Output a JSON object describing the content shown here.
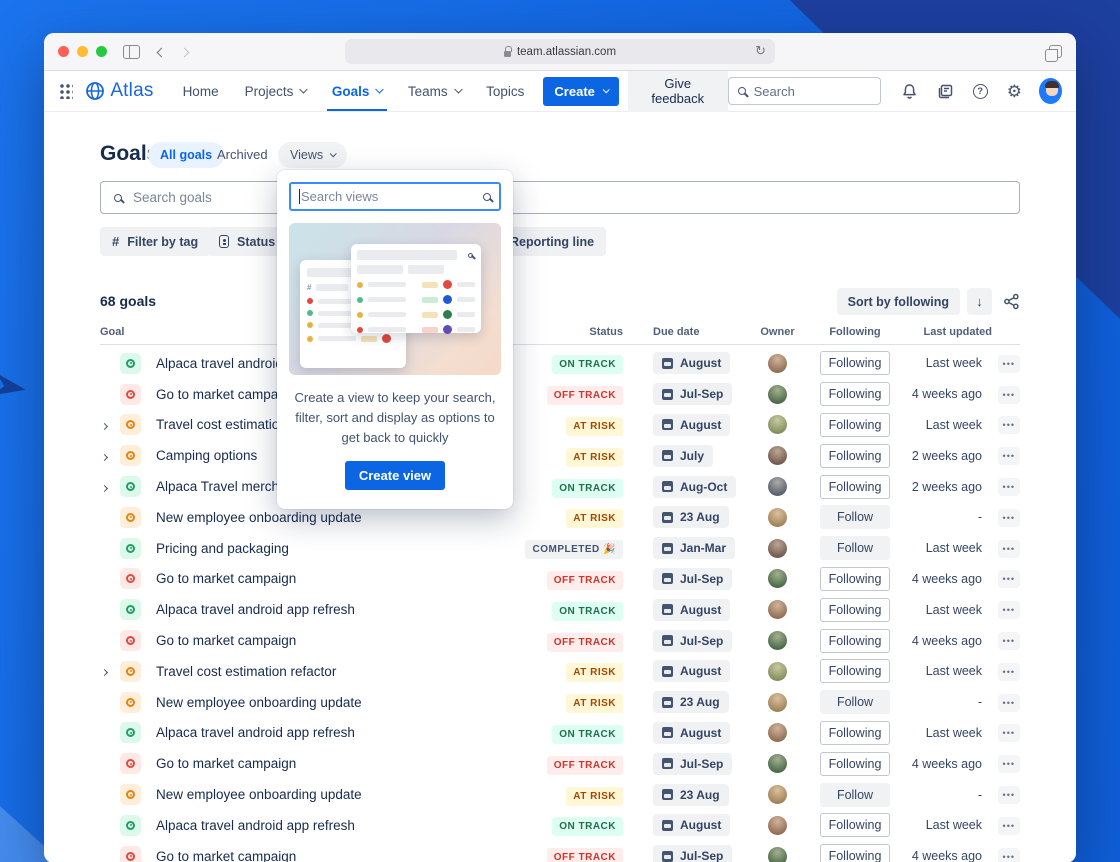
{
  "colors": {
    "brand_blue": "#0c66e4",
    "background_blue": "#1467e2",
    "background_navy": "#1d3f9e",
    "on_track": {
      "bg": "#dcfff1",
      "text": "#216e4e"
    },
    "off_track": {
      "bg": "#ffeceb",
      "text": "#c9372c"
    },
    "at_risk": {
      "bg": "#fff7d6",
      "text": "#a54800"
    },
    "completed": {
      "bg": "#f1f2f4",
      "text": "#44546f"
    }
  },
  "browser": {
    "url": "team.atlassian.com"
  },
  "nav": {
    "logo_label": "Atlas",
    "items": [
      {
        "label": "Home",
        "dropdown": false,
        "active": false
      },
      {
        "label": "Projects",
        "dropdown": true,
        "active": false
      },
      {
        "label": "Goals",
        "dropdown": true,
        "active": true
      },
      {
        "label": "Teams",
        "dropdown": true,
        "active": false
      },
      {
        "label": "Topics",
        "dropdown": false,
        "active": false
      }
    ],
    "create_label": "Create",
    "feedback_label": "Give feedback",
    "search_placeholder": "Search"
  },
  "page": {
    "title": "Goals",
    "tab_all": "All goals",
    "tab_archived": "Archived",
    "views_label": "Views",
    "search_placeholder": "Search goals",
    "filters": [
      "Filter by tag",
      "Status",
      "Reporting line"
    ],
    "count_label": "68 goals",
    "sort_label": "Sort by following",
    "sort_arrow": "↓"
  },
  "views_popup": {
    "search_placeholder": "Search views",
    "description": "Create a view to keep your search, filter, sort and display as options to get back to quickly",
    "button_label": "Create view"
  },
  "table": {
    "headers": [
      "Goal",
      "Status",
      "Due date",
      "Owner",
      "Following",
      "Last updated"
    ],
    "rows": [
      {
        "name": "Alpaca travel android app refresh",
        "expandable": false,
        "icon": "green",
        "status": "ON TRACK",
        "status_type": "on-track",
        "due": "August",
        "avatar": "#9c6f52",
        "follow_label": "Following",
        "follow_state": "following",
        "updated": "Last week"
      },
      {
        "name": "Go to market campaign",
        "expandable": false,
        "icon": "red",
        "status": "OFF TRACK",
        "status_type": "off-track",
        "due": "Jul-Sep",
        "avatar": "#35693d",
        "follow_label": "Following",
        "follow_state": "following",
        "updated": "4 weeks ago"
      },
      {
        "name": "Travel cost estimation refactor",
        "expandable": true,
        "icon": "orange",
        "status": "AT RISK",
        "status_type": "at-risk",
        "due": "August",
        "avatar": "#87a05e",
        "follow_label": "Following",
        "follow_state": "following",
        "updated": "Last week"
      },
      {
        "name": "Camping options",
        "expandable": true,
        "icon": "orange",
        "status": "AT RISK",
        "status_type": "at-risk",
        "due": "July",
        "avatar": "#6e5346",
        "follow_label": "Following",
        "follow_state": "following",
        "updated": "2 weeks ago"
      },
      {
        "name": "Alpaca Travel merchandise",
        "expandable": true,
        "icon": "green",
        "status": "ON TRACK",
        "status_type": "on-track",
        "due": "Aug-Oct",
        "avatar": "#4a5a75",
        "follow_label": "Following",
        "follow_state": "following",
        "updated": "2 weeks ago"
      },
      {
        "name": "New employee onboarding update",
        "expandable": false,
        "icon": "orange",
        "status": "AT RISK",
        "status_type": "at-risk",
        "due": "23 Aug",
        "avatar": "#b08d57",
        "follow_label": "Follow",
        "follow_state": "follow",
        "updated": "-"
      },
      {
        "name": "Pricing and packaging",
        "expandable": false,
        "icon": "green",
        "status": "COMPLETED 🎉",
        "status_type": "completed",
        "due": "Jan-Mar",
        "avatar": "#6e5346",
        "follow_label": "Follow",
        "follow_state": "follow",
        "updated": "Last week"
      },
      {
        "name": "Go to market campaign",
        "expandable": false,
        "icon": "red",
        "status": "OFF TRACK",
        "status_type": "off-track",
        "due": "Jul-Sep",
        "avatar": "#35693d",
        "follow_label": "Following",
        "follow_state": "following",
        "updated": "4 weeks ago"
      },
      {
        "name": "Alpaca travel android app refresh",
        "expandable": false,
        "icon": "green",
        "status": "ON TRACK",
        "status_type": "on-track",
        "due": "August",
        "avatar": "#9c6f52",
        "follow_label": "Following",
        "follow_state": "following",
        "updated": "Last week"
      },
      {
        "name": "Go to market campaign",
        "expandable": false,
        "icon": "red",
        "status": "OFF TRACK",
        "status_type": "off-track",
        "due": "Jul-Sep",
        "avatar": "#35693d",
        "follow_label": "Following",
        "follow_state": "following",
        "updated": "4 weeks ago"
      },
      {
        "name": "Travel cost estimation refactor",
        "expandable": true,
        "icon": "orange",
        "status": "AT RISK",
        "status_type": "at-risk",
        "due": "August",
        "avatar": "#87a05e",
        "follow_label": "Following",
        "follow_state": "following",
        "updated": "Last week"
      },
      {
        "name": "New employee onboarding update",
        "expandable": false,
        "icon": "orange",
        "status": "AT RISK",
        "status_type": "at-risk",
        "due": "23 Aug",
        "avatar": "#b08d57",
        "follow_label": "Follow",
        "follow_state": "follow",
        "updated": "-"
      },
      {
        "name": "Alpaca travel android app refresh",
        "expandable": false,
        "icon": "green",
        "status": "ON TRACK",
        "status_type": "on-track",
        "due": "August",
        "avatar": "#9c6f52",
        "follow_label": "Following",
        "follow_state": "following",
        "updated": "Last week"
      },
      {
        "name": "Go to market campaign",
        "expandable": false,
        "icon": "red",
        "status": "OFF TRACK",
        "status_type": "off-track",
        "due": "Jul-Sep",
        "avatar": "#35693d",
        "follow_label": "Following",
        "follow_state": "following",
        "updated": "4 weeks ago"
      },
      {
        "name": "New employee onboarding update",
        "expandable": false,
        "icon": "orange",
        "status": "AT RISK",
        "status_type": "at-risk",
        "due": "23 Aug",
        "avatar": "#b08d57",
        "follow_label": "Follow",
        "follow_state": "follow",
        "updated": "-"
      },
      {
        "name": "Alpaca travel android app refresh",
        "expandable": false,
        "icon": "green",
        "status": "ON TRACK",
        "status_type": "on-track",
        "due": "August",
        "avatar": "#9c6f52",
        "follow_label": "Following",
        "follow_state": "following",
        "updated": "Last week"
      },
      {
        "name": "Go to market campaign",
        "expandable": false,
        "icon": "red",
        "status": "OFF TRACK",
        "status_type": "off-track",
        "due": "Jul-Sep",
        "avatar": "#35693d",
        "follow_label": "Following",
        "follow_state": "following",
        "updated": "4 weeks ago"
      }
    ]
  }
}
